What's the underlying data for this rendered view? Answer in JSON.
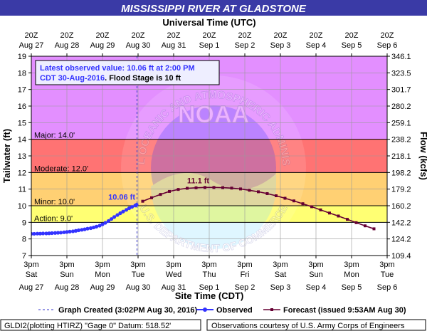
{
  "chart_data": {
    "type": "line",
    "title": "MISSISSIPPI RIVER AT GLADSTONE",
    "top_axis": {
      "label": "Universal Time (UTC)",
      "ticks": [
        {
          "line1": "20Z",
          "line2": "Aug 27"
        },
        {
          "line1": "20Z",
          "line2": "Aug 28"
        },
        {
          "line1": "20Z",
          "line2": "Aug 29"
        },
        {
          "line1": "20Z",
          "line2": "Aug 30"
        },
        {
          "line1": "20Z",
          "line2": "Aug 31"
        },
        {
          "line1": "20Z",
          "line2": "Sep 1"
        },
        {
          "line1": "20Z",
          "line2": "Sep 2"
        },
        {
          "line1": "20Z",
          "line2": "Sep 3"
        },
        {
          "line1": "20Z",
          "line2": "Sep 4"
        },
        {
          "line1": "20Z",
          "line2": "Sep 5"
        },
        {
          "line1": "20Z",
          "line2": "Sep 6"
        }
      ]
    },
    "bottom_axis": {
      "label": "Site Time (CDT)",
      "ticks": [
        {
          "line1": "3pm",
          "line2": "Sat",
          "line3": "Aug 27"
        },
        {
          "line1": "3pm",
          "line2": "Sun",
          "line3": "Aug 28"
        },
        {
          "line1": "3pm",
          "line2": "Mon",
          "line3": "Aug 29"
        },
        {
          "line1": "3pm",
          "line2": "Tue",
          "line3": "Aug 30"
        },
        {
          "line1": "3pm",
          "line2": "Wed",
          "line3": "Aug 31"
        },
        {
          "line1": "3pm",
          "line2": "Thu",
          "line3": "Sep 1"
        },
        {
          "line1": "3pm",
          "line2": "Fri",
          "line3": "Sep 2"
        },
        {
          "line1": "3pm",
          "line2": "Sat",
          "line3": "Sep 3"
        },
        {
          "line1": "3pm",
          "line2": "Sun",
          "line3": "Sep 4"
        },
        {
          "line1": "3pm",
          "line2": "Mon",
          "line3": "Sep 5"
        },
        {
          "line1": "3pm",
          "line2": "Tue",
          "line3": "Sep 6"
        }
      ]
    },
    "xlim_days": [
      0,
      10
    ],
    "y_left": {
      "label": "Tailwater (ft)",
      "min": 7,
      "max": 19,
      "step": 1
    },
    "y_right": {
      "label": "Flow (kcfs)",
      "ticks": [
        {
          "stage": 7,
          "label": "109.4"
        },
        {
          "stage": 8,
          "label": "124.2"
        },
        {
          "stage": 9,
          "label": "142.2"
        },
        {
          "stage": 10,
          "label": "160.2"
        },
        {
          "stage": 11,
          "label": "179.2"
        },
        {
          "stage": 12,
          "label": "198.2"
        },
        {
          "stage": 13,
          "label": "218.1"
        },
        {
          "stage": 14,
          "label": "238.2"
        },
        {
          "stage": 15,
          "label": "259.1"
        },
        {
          "stage": 16,
          "label": "280.2"
        },
        {
          "stage": 17,
          "label": "301.7"
        },
        {
          "stage": 18,
          "label": "323.5"
        },
        {
          "stage": 19,
          "label": "346.1"
        }
      ]
    },
    "flood_categories": [
      {
        "name": "Action",
        "label": "Action: 9.0'",
        "stage": 9.0,
        "color": "#ffff00"
      },
      {
        "name": "Minor",
        "label": "Minor: 10.0'",
        "stage": 10.0,
        "color": "#ffaa00"
      },
      {
        "name": "Moderate",
        "label": "Moderate: 12.0'",
        "stage": 12.0,
        "color": "#ff0000"
      },
      {
        "name": "Major",
        "label": "Major: 14.0'",
        "stage": 14.0,
        "color": "#cc33ff"
      }
    ],
    "graph_created_day": 2.97,
    "info_box": {
      "line1": "Latest observed value: 10.06 ft at 2:00 PM",
      "line2a": "CDT 30-Aug-2016",
      "line2b": ". Flood Stage is 10 ft"
    },
    "annotations": {
      "observed_latest": {
        "text": "10.06 ft",
        "day": 2.96,
        "stage": 10.06
      },
      "forecast_crest": {
        "text": "11.1 ft",
        "day": 5.25,
        "stage": 11.1
      }
    },
    "series": [
      {
        "name": "Observed",
        "color": "#3333ff",
        "points": [
          [
            0.0,
            8.31
          ],
          [
            0.08,
            8.31
          ],
          [
            0.17,
            8.32
          ],
          [
            0.25,
            8.32
          ],
          [
            0.33,
            8.33
          ],
          [
            0.42,
            8.33
          ],
          [
            0.5,
            8.34
          ],
          [
            0.58,
            8.35
          ],
          [
            0.67,
            8.36
          ],
          [
            0.75,
            8.37
          ],
          [
            0.83,
            8.38
          ],
          [
            0.92,
            8.4
          ],
          [
            1.0,
            8.42
          ],
          [
            1.08,
            8.44
          ],
          [
            1.17,
            8.46
          ],
          [
            1.25,
            8.49
          ],
          [
            1.33,
            8.52
          ],
          [
            1.42,
            8.55
          ],
          [
            1.5,
            8.58
          ],
          [
            1.58,
            8.62
          ],
          [
            1.67,
            8.65
          ],
          [
            1.75,
            8.69
          ],
          [
            1.83,
            8.74
          ],
          [
            1.92,
            8.8
          ],
          [
            2.0,
            8.88
          ],
          [
            2.08,
            8.97
          ],
          [
            2.17,
            9.08
          ],
          [
            2.25,
            9.2
          ],
          [
            2.33,
            9.32
          ],
          [
            2.42,
            9.44
          ],
          [
            2.5,
            9.55
          ],
          [
            2.58,
            9.65
          ],
          [
            2.67,
            9.75
          ],
          [
            2.75,
            9.85
          ],
          [
            2.83,
            9.93
          ],
          [
            2.92,
            10.01
          ],
          [
            2.96,
            10.06
          ]
        ]
      },
      {
        "name": "Forecast",
        "color": "#660033",
        "points": [
          [
            3.13,
            10.27
          ],
          [
            3.38,
            10.48
          ],
          [
            3.63,
            10.68
          ],
          [
            3.88,
            10.86
          ],
          [
            4.13,
            10.98
          ],
          [
            4.38,
            11.05
          ],
          [
            4.63,
            11.08
          ],
          [
            4.88,
            11.1
          ],
          [
            5.13,
            11.1
          ],
          [
            5.38,
            11.09
          ],
          [
            5.63,
            11.06
          ],
          [
            5.88,
            11.01
          ],
          [
            6.13,
            10.93
          ],
          [
            6.38,
            10.84
          ],
          [
            6.63,
            10.73
          ],
          [
            6.88,
            10.6
          ],
          [
            7.13,
            10.45
          ],
          [
            7.38,
            10.29
          ],
          [
            7.63,
            10.12
          ],
          [
            7.88,
            9.94
          ],
          [
            8.13,
            9.75
          ],
          [
            8.38,
            9.56
          ],
          [
            8.63,
            9.38
          ],
          [
            8.88,
            9.18
          ],
          [
            9.13,
            8.98
          ],
          [
            9.38,
            8.79
          ],
          [
            9.63,
            8.61
          ]
        ]
      }
    ],
    "legend": {
      "created": "Graph Created (3:02PM Aug 30, 2016)",
      "observed": "Observed",
      "forecast": "Forecast (issued 9:53AM Aug 30)"
    },
    "footer": {
      "left": "GLDI2(plotting HTIRZ) \"Gage 0\" Datum:  518.52'",
      "right": "Observations courtesy of U.S. Army Corps of Engineers"
    },
    "watermark": {
      "text": "NOAA",
      "ring_top": "NATIONAL OCEANIC AND ATMOSPHERIC ADMINISTRATION",
      "ring_bottom": "U.S. DEPARTMENT OF COMMERCE"
    }
  }
}
